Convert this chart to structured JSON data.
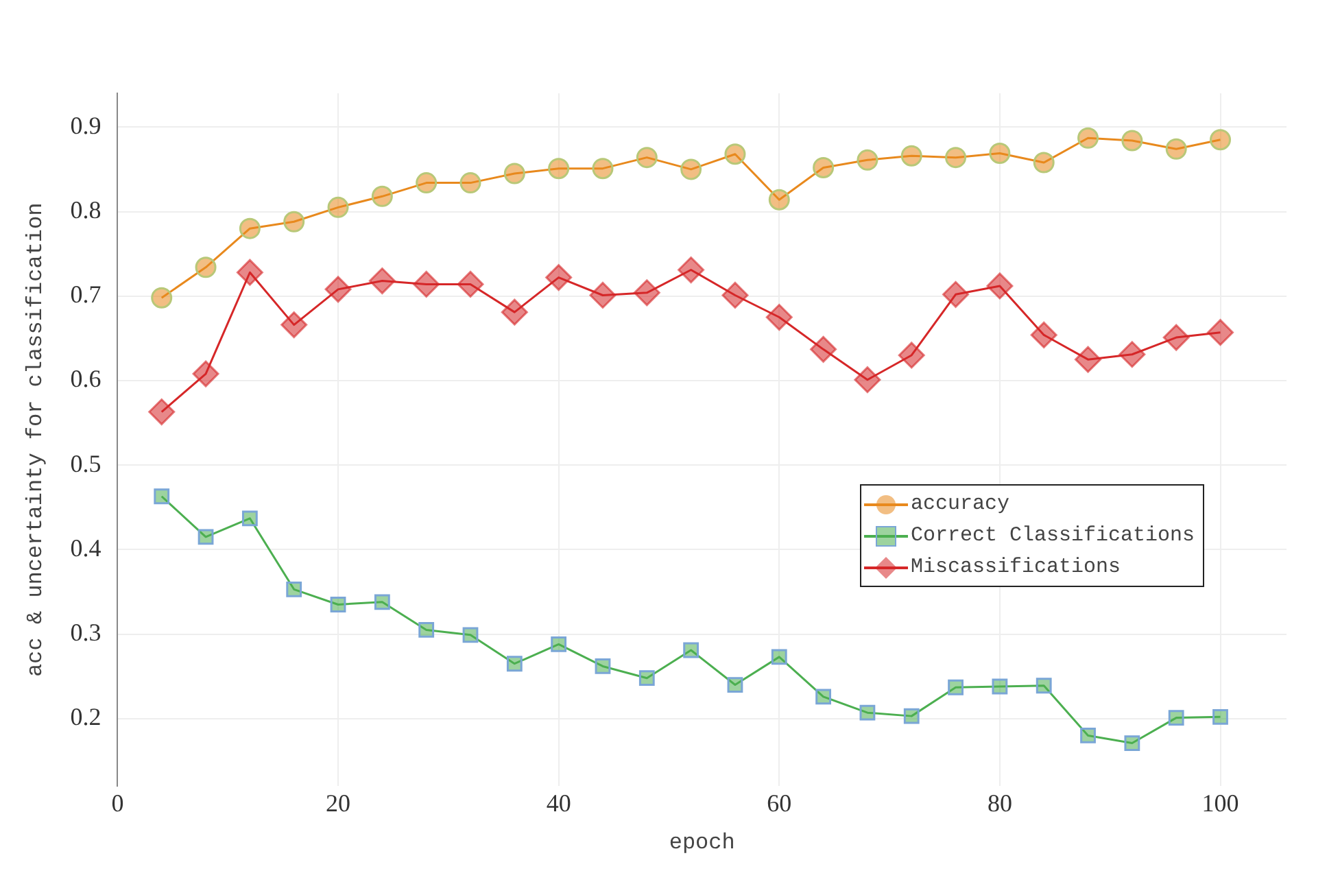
{
  "chart_data": {
    "type": "line",
    "xlabel": "epoch",
    "ylabel": "acc & uncertainty for classification",
    "x": [
      4,
      8,
      12,
      16,
      20,
      24,
      28,
      32,
      36,
      40,
      44,
      48,
      52,
      56,
      60,
      64,
      68,
      72,
      76,
      80,
      84,
      88,
      92,
      96,
      100
    ],
    "series": [
      {
        "name": "accuracy",
        "color": "#e8891d",
        "marker": "circle",
        "values": [
          0.698,
          0.734,
          0.78,
          0.788,
          0.805,
          0.818,
          0.834,
          0.834,
          0.845,
          0.851,
          0.851,
          0.864,
          0.85,
          0.868,
          0.814,
          0.852,
          0.861,
          0.866,
          0.864,
          0.869,
          0.858,
          0.887,
          0.884,
          0.874,
          0.885
        ]
      },
      {
        "name": "Correct Classifications",
        "color": "#4caf50",
        "marker": "square",
        "values": [
          0.463,
          0.415,
          0.437,
          0.353,
          0.335,
          0.338,
          0.305,
          0.299,
          0.265,
          0.288,
          0.262,
          0.248,
          0.281,
          0.24,
          0.273,
          0.226,
          0.207,
          0.203,
          0.237,
          0.238,
          0.239,
          0.18,
          0.171,
          0.201,
          0.202
        ]
      },
      {
        "name": "Miscassifications",
        "color": "#d62728",
        "marker": "diamond",
        "values": [
          0.563,
          0.608,
          0.728,
          0.666,
          0.708,
          0.718,
          0.714,
          0.714,
          0.681,
          0.722,
          0.701,
          0.704,
          0.731,
          0.701,
          0.675,
          0.637,
          0.601,
          0.63,
          0.702,
          0.712,
          0.654,
          0.625,
          0.631,
          0.651,
          0.657
        ]
      }
    ],
    "xlim": [
      0,
      106
    ],
    "xticks": [
      0,
      20,
      40,
      60,
      80,
      100
    ],
    "ylim": [
      0.12,
      0.94
    ],
    "yticks": [
      0.2,
      0.3,
      0.4,
      0.5,
      0.6,
      0.7,
      0.8,
      0.9
    ],
    "grid": true,
    "legend": "right",
    "line_style": "solid"
  }
}
